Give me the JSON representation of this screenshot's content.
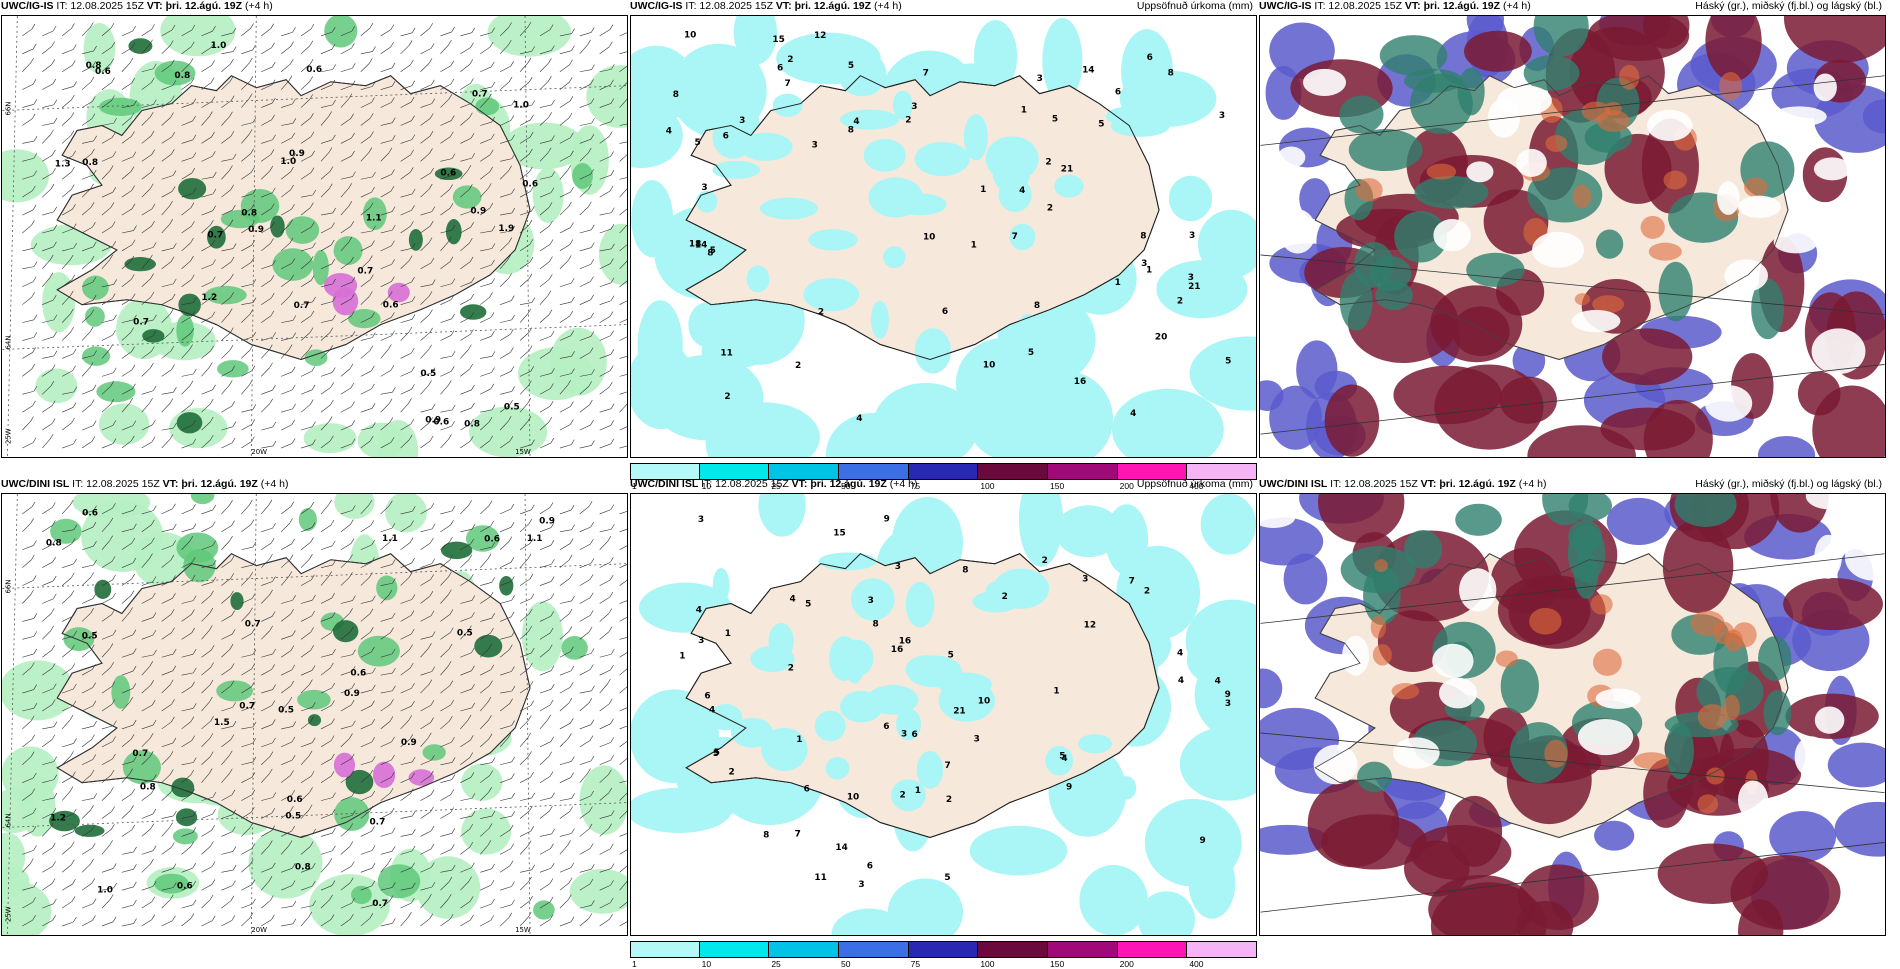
{
  "colors": {
    "land": "#f6e9dc",
    "precip_light": "#aaf5f5",
    "green_light": "#b5efc2",
    "green_mid": "#5fc87a",
    "green_dark": "#1f6e3a",
    "magenta": "#d76fd6",
    "maroon": "#7a1a32",
    "purple": "#5a5acd",
    "teal": "#2f7f6e"
  },
  "header_common": {
    "it": "IT: 12.08.2025 15Z",
    "vt_label": "VT: þri. 12.ágú. 19Z",
    "lead": "(+4 h)"
  },
  "rows": [
    {
      "model": "UWC/IG-IS",
      "panels": [
        {
          "title": ""
        },
        {
          "title": "Uppsöfnuð úrkoma (mm)"
        },
        {
          "title": "Háský (gr.), miðský (fj.bl.) og lágský (bl.)"
        }
      ]
    },
    {
      "model": "UWC/DINI ISL",
      "panels": [
        {
          "title": ""
        },
        {
          "title": "Uppsöfnuð úrkoma (mm)"
        },
        {
          "title": "Háský (gr.), miðský (fj.bl.) og lágský (bl.)"
        }
      ]
    }
  ],
  "grid_labels": {
    "lat66": "66N",
    "lat64": "64N",
    "lon25": "25W",
    "lon20": "20W",
    "lon15": "15W"
  },
  "colorbar": {
    "ticks": [
      "1",
      "10",
      "25",
      "50",
      "75",
      "100",
      "150",
      "200",
      "400"
    ],
    "colors": [
      "#b4f8f8",
      "#00e8ec",
      "#00c3e6",
      "#3c6ee6",
      "#2828b4",
      "#6a0a3c",
      "#a00a78",
      "#ff14b4",
      "#f5b4f5"
    ]
  },
  "wind_labels": {
    "top": [
      "0.9",
      "0.8",
      "0.7",
      "0.6",
      "1.2",
      "0.9",
      "0.5",
      "0.8",
      "0.6",
      "1.1",
      "0.9",
      "0.8",
      "1.0",
      "0.7",
      "0.6",
      "0.5",
      "1.3",
      "0.8",
      "0.6",
      "0.7",
      "0.6",
      "1.0",
      "0.9",
      "0.6",
      "0.7",
      "1.9",
      "1.0",
      "0.7",
      "0.8"
    ],
    "bottom": [
      "0.7",
      "0.6",
      "0.8",
      "0.7",
      "0.5",
      "1.1",
      "0.9",
      "0.5",
      "0.6",
      "1.5",
      "0.8",
      "0.7",
      "0.9",
      "0.6",
      "1.0",
      "0.5",
      "0.7",
      "1.2",
      "0.8",
      "0.6",
      "0.9",
      "0.5",
      "0.7",
      "0.6",
      "1.1"
    ]
  },
  "precip_labels": {
    "top": [
      "2",
      "5",
      "6",
      "4",
      "3",
      "1",
      "2",
      "3",
      "6",
      "8",
      "3",
      "14",
      "5",
      "16",
      "7",
      "8",
      "5",
      "14",
      "3",
      "1",
      "2",
      "4",
      "3",
      "2",
      "18",
      "11",
      "15",
      "21",
      "20",
      "5",
      "1",
      "3",
      "4",
      "5",
      "10",
      "10",
      "3",
      "2",
      "4",
      "5",
      "7",
      "8",
      "6",
      "8",
      "1",
      "2",
      "12",
      "3",
      "6",
      "8",
      "2",
      "1",
      "3",
      "5",
      "2",
      "4",
      "6",
      "7",
      "10",
      "21",
      "8"
    ],
    "bottom": [
      "2",
      "3",
      "1",
      "4",
      "5",
      "3",
      "2",
      "4",
      "6",
      "3",
      "16",
      "14",
      "11",
      "9",
      "4",
      "5",
      "7",
      "2",
      "3",
      "15",
      "16",
      "8",
      "6",
      "9",
      "5",
      "3",
      "10",
      "4",
      "2",
      "1",
      "6",
      "4",
      "3",
      "7",
      "5",
      "8",
      "1",
      "2",
      "9",
      "10",
      "6",
      "4",
      "3",
      "21",
      "2",
      "1",
      "7",
      "5",
      "8",
      "3",
      "12",
      "2",
      "6",
      "4",
      "5",
      "3",
      "1",
      "9"
    ]
  }
}
